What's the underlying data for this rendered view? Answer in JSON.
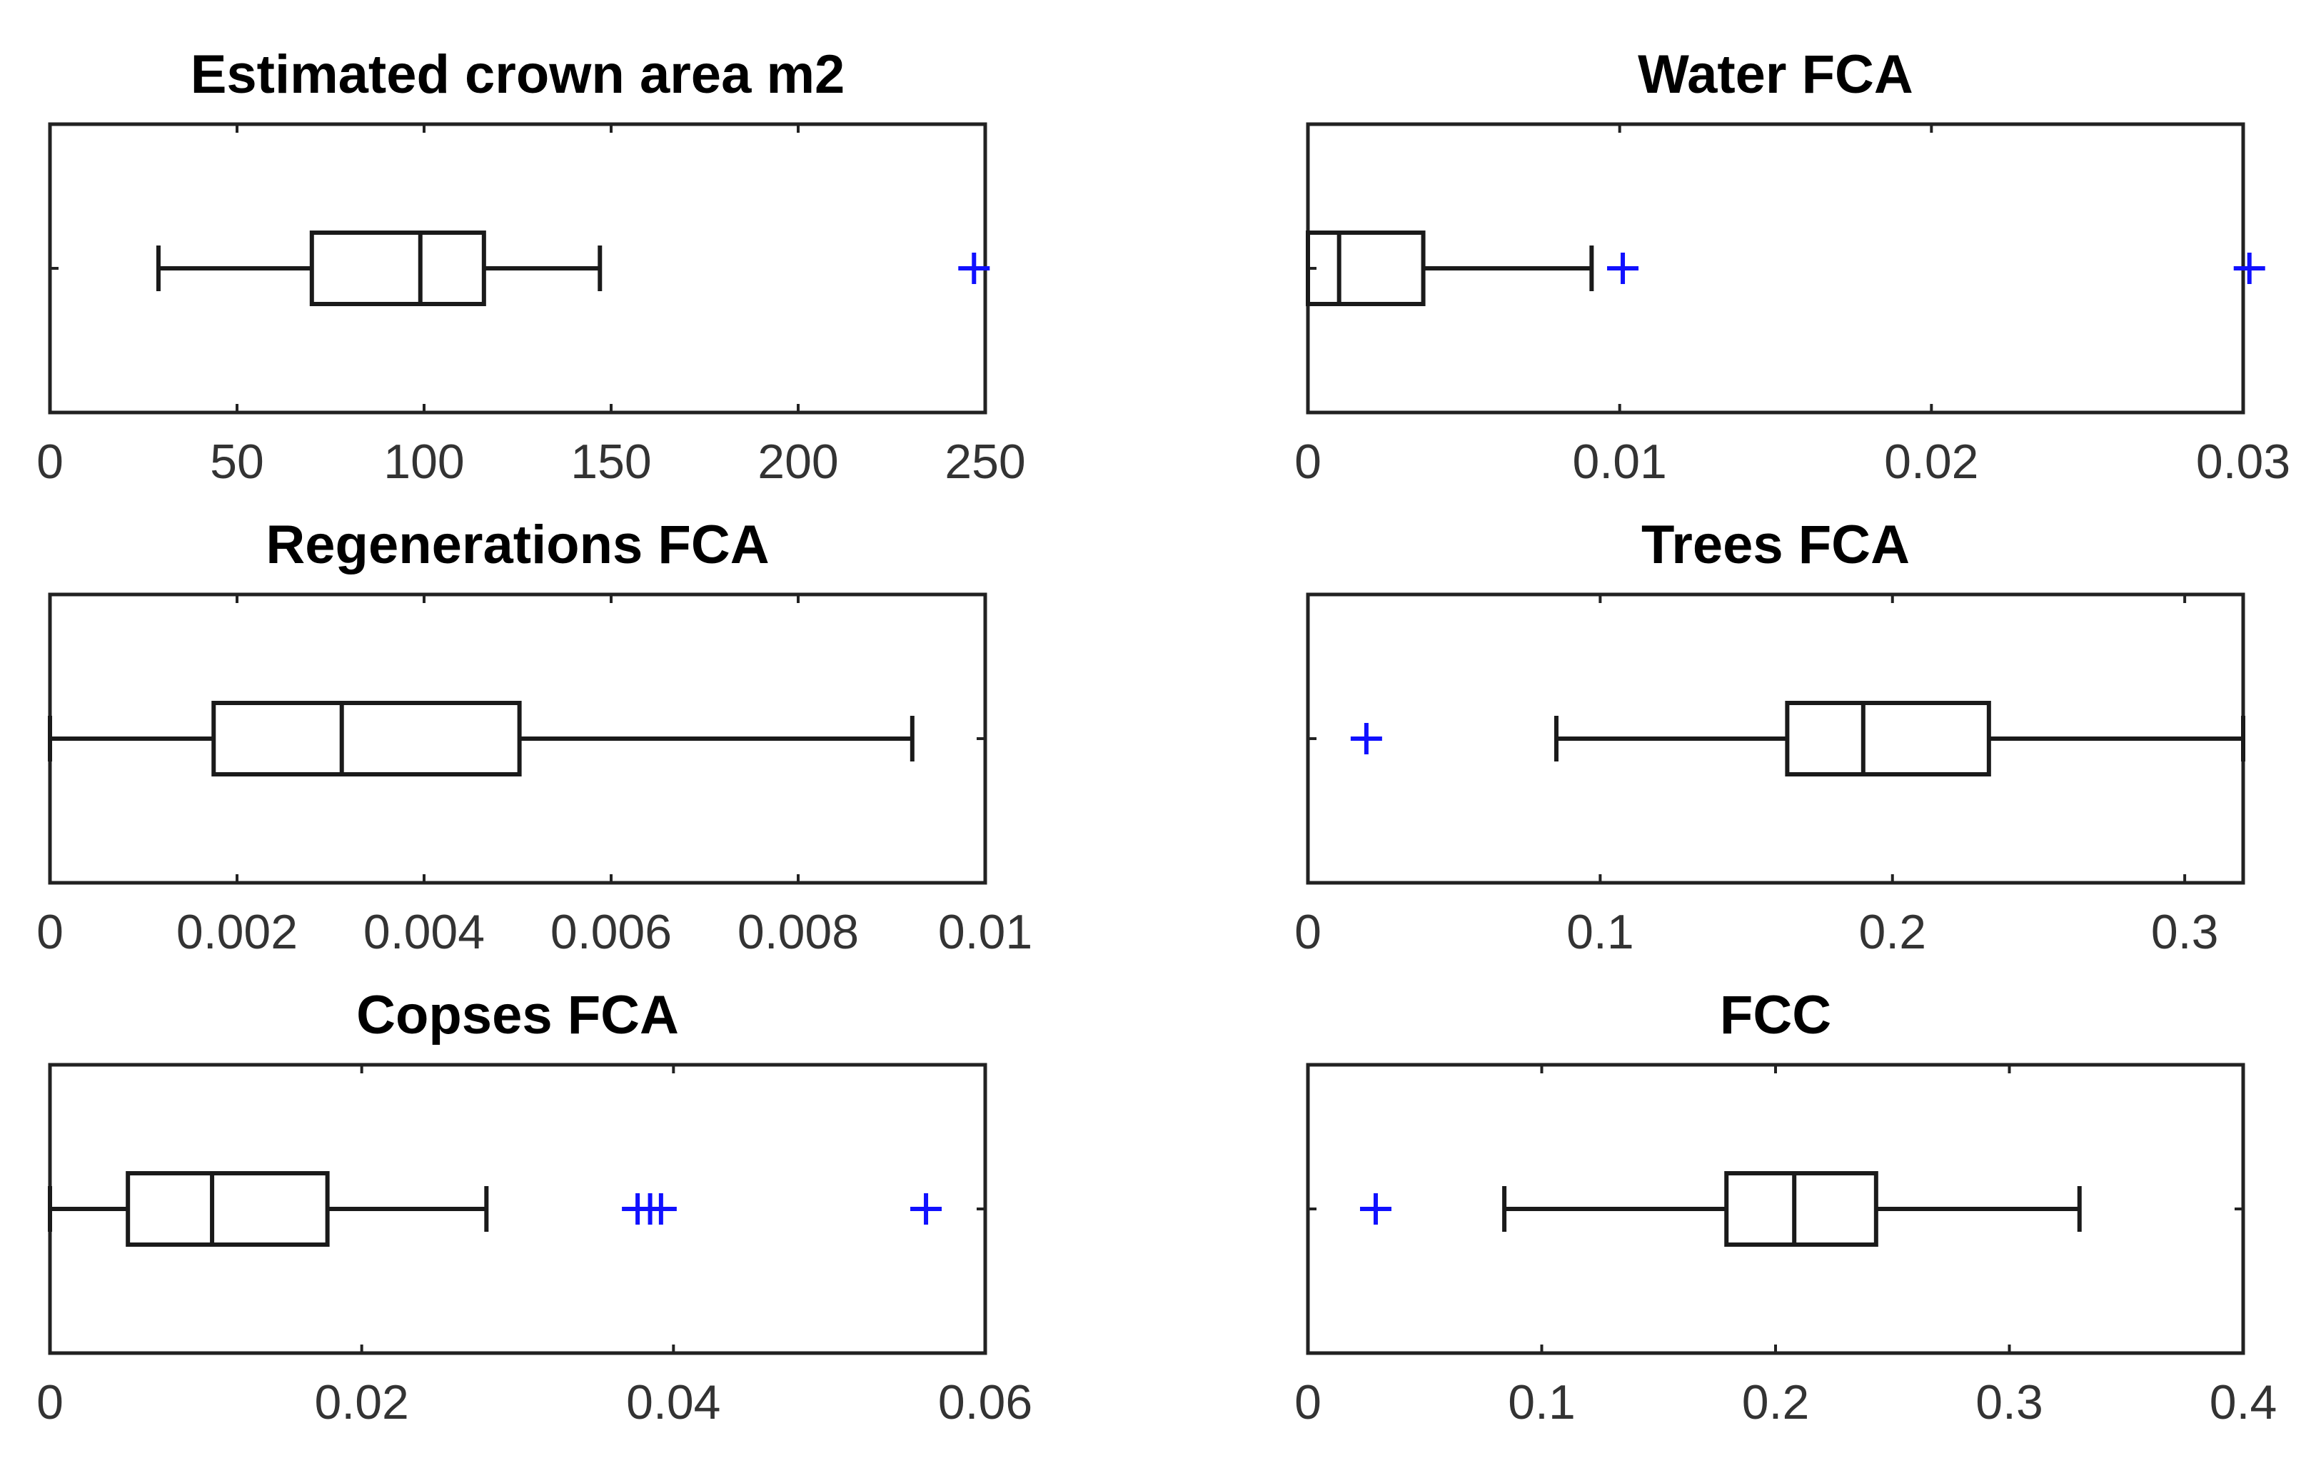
{
  "chart_data": [
    {
      "type": "boxplot",
      "title": "Estimated crown area m2",
      "xlim": [
        0,
        250
      ],
      "xticks": [
        0,
        50,
        100,
        150,
        200,
        250
      ],
      "xticklabels": [
        "0",
        "50",
        "100",
        "150",
        "200",
        "250"
      ],
      "whisker_low": 29,
      "q1": 70,
      "median": 99,
      "q3": 116,
      "whisker_high": 147,
      "outliers": [
        247
      ]
    },
    {
      "type": "boxplot",
      "title": "Water FCA",
      "xlim": [
        0,
        0.03
      ],
      "xticks": [
        0,
        0.01,
        0.02,
        0.03
      ],
      "xticklabels": [
        "0",
        "0.01",
        "0.02",
        "0.03"
      ],
      "whisker_low": 0,
      "q1": 0,
      "median": 0.001,
      "q3": 0.0037,
      "whisker_high": 0.0091,
      "outliers": [
        0.0101,
        0.0302
      ]
    },
    {
      "type": "boxplot",
      "title": "Regenerations FCA",
      "xlim": [
        0,
        0.01
      ],
      "xticks": [
        0,
        0.002,
        0.004,
        0.006,
        0.008,
        0.01
      ],
      "xticklabels": [
        "0",
        "0.002",
        "0.004",
        "0.006",
        "0.008",
        "0.01"
      ],
      "whisker_low": 0,
      "q1": 0.00175,
      "median": 0.00312,
      "q3": 0.00502,
      "whisker_high": 0.00922,
      "outliers": []
    },
    {
      "type": "boxplot",
      "title": "Trees FCA",
      "xlim": [
        0,
        0.32
      ],
      "xticks": [
        0,
        0.1,
        0.2,
        0.3
      ],
      "xticklabels": [
        "0",
        "0.1",
        "0.2",
        "0.3"
      ],
      "whisker_low": 0.085,
      "q1": 0.164,
      "median": 0.19,
      "q3": 0.233,
      "whisker_high": 0.32,
      "outliers": [
        0.02
      ]
    },
    {
      "type": "boxplot",
      "title": "Copses FCA",
      "xlim": [
        0,
        0.06
      ],
      "xticks": [
        0,
        0.02,
        0.04,
        0.06
      ],
      "xticklabels": [
        "0",
        "0.02",
        "0.04",
        "0.06"
      ],
      "whisker_low": 0,
      "q1": 0.005,
      "median": 0.0104,
      "q3": 0.0178,
      "whisker_high": 0.028,
      "outliers": [
        0.0377,
        0.0385,
        0.0392,
        0.0562
      ]
    },
    {
      "type": "boxplot",
      "title": "FCC",
      "xlim": [
        0,
        0.4
      ],
      "xticks": [
        0,
        0.1,
        0.2,
        0.3,
        0.4
      ],
      "xticklabels": [
        "0",
        "0.1",
        "0.2",
        "0.3",
        "0.4"
      ],
      "whisker_low": 0.084,
      "q1": 0.179,
      "median": 0.208,
      "q3": 0.243,
      "whisker_high": 0.33,
      "outliers": [
        0.029
      ]
    }
  ]
}
